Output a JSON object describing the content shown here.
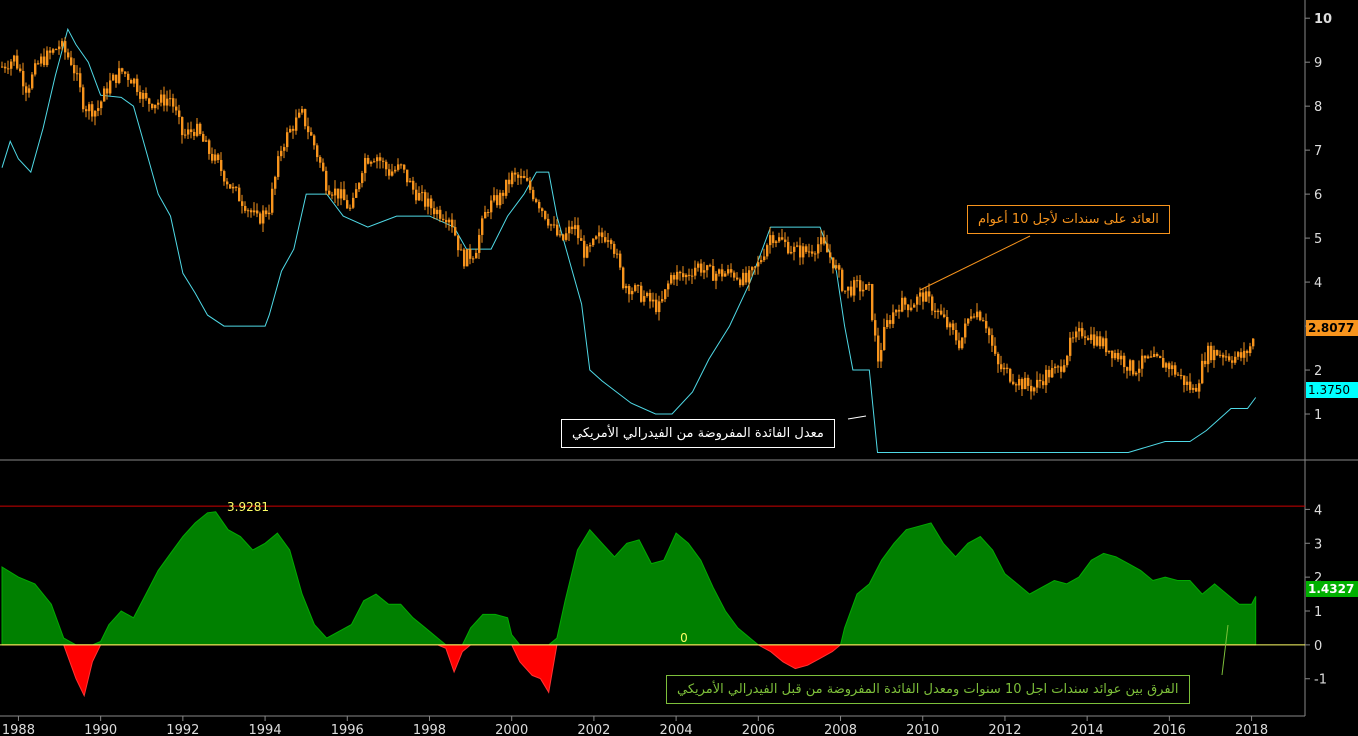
{
  "annotations": {
    "yield_label": "العائد على سندات لأجل 10 أعوام",
    "fed_label": "معدل الفائدة المفروضة من الفيدرالي الأمريكي",
    "spread_label": "الفرق بين عوائد سندات اجل 10 سنوات ومعدل الفائدة المفروضة من قبل الفيدرالي الأمريكي"
  },
  "last_values": {
    "yield": "2.8077",
    "fed": "1.3750",
    "spread": "1.4327",
    "spread_max": "3.9281",
    "zero": "0"
  },
  "colors": {
    "background": "#000000",
    "yield": "#f7941d",
    "fed": "#4fd9e6",
    "spread_pos": "#008000",
    "spread_neg": "#ff0000",
    "zero_line": "#ffff66",
    "max_line": "#cc0000",
    "axis_text": "#dddddd"
  },
  "chart_data": [
    {
      "type": "line",
      "panel": "top",
      "x_ticks": [
        "1988",
        "1990",
        "1992",
        "1994",
        "1996",
        "1998",
        "2000",
        "2002",
        "2004",
        "2006",
        "2008",
        "2010",
        "2012",
        "2014",
        "2016",
        "2018"
      ],
      "xlim": [
        1987.6,
        2019.3
      ],
      "y_ticks": [
        1,
        2,
        3,
        4,
        5,
        6,
        7,
        8,
        9,
        10
      ],
      "ylim": [
        0.0,
        10.3
      ],
      "series": [
        {
          "key": "yield",
          "x": [
            1987.6,
            1987.9,
            1988.2,
            1988.5,
            1988.8,
            1989.0,
            1989.3,
            1989.6,
            1989.9,
            1990.2,
            1990.5,
            1990.8,
            1991.1,
            1991.4,
            1991.7,
            1992.0,
            1992.3,
            1992.6,
            1992.9,
            1993.2,
            1993.5,
            1993.8,
            1994.1,
            1994.4,
            1994.7,
            1994.9,
            1995.2,
            1995.5,
            1995.8,
            1996.1,
            1996.4,
            1996.7,
            1997.0,
            1997.3,
            1997.6,
            1997.9,
            1998.2,
            1998.5,
            1998.8,
            1999.1,
            1999.4,
            1999.7,
            2000.0,
            2000.3,
            2000.6,
            2000.9,
            2001.2,
            2001.5,
            2001.8,
            2002.1,
            2002.4,
            2002.7,
            2003.0,
            2003.3,
            2003.6,
            2003.9,
            2004.2,
            2004.5,
            2004.8,
            2005.1,
            2005.4,
            2005.7,
            2006.0,
            2006.3,
            2006.6,
            2006.9,
            2007.2,
            2007.5,
            2007.8,
            2008.1,
            2008.4,
            2008.7,
            2008.9,
            2009.1,
            2009.4,
            2009.7,
            2010.0,
            2010.3,
            2010.6,
            2010.9,
            2011.2,
            2011.5,
            2011.8,
            2012.1,
            2012.4,
            2012.7,
            2013.0,
            2013.3,
            2013.6,
            2013.9,
            2014.2,
            2014.5,
            2014.8,
            2015.1,
            2015.4,
            2015.7,
            2016.0,
            2016.3,
            2016.6,
            2016.9,
            2017.2,
            2017.5,
            2017.8,
            2018.0,
            2018.1
          ],
          "values": [
            8.9,
            9.1,
            8.4,
            9.0,
            9.2,
            9.4,
            9.0,
            8.0,
            7.9,
            8.5,
            8.8,
            8.6,
            8.1,
            8.1,
            8.2,
            7.3,
            7.5,
            7.0,
            6.6,
            6.1,
            5.8,
            5.4,
            5.7,
            7.1,
            7.6,
            7.8,
            7.1,
            6.2,
            6.0,
            5.6,
            6.8,
            6.9,
            6.5,
            6.6,
            6.1,
            5.8,
            5.6,
            5.5,
            4.5,
            4.7,
            5.7,
            5.9,
            6.4,
            6.3,
            5.9,
            5.4,
            4.9,
            5.3,
            4.6,
            5.0,
            5.1,
            4.0,
            3.8,
            3.6,
            3.4,
            4.2,
            4.1,
            4.4,
            4.2,
            4.2,
            4.2,
            4.0,
            4.4,
            5.1,
            4.9,
            4.7,
            4.7,
            4.9,
            4.5,
            3.8,
            3.9,
            3.8,
            2.2,
            3.0,
            3.5,
            3.5,
            3.7,
            3.4,
            3.0,
            2.6,
            3.4,
            3.2,
            2.1,
            1.9,
            1.7,
            1.6,
            1.9,
            2.0,
            2.6,
            2.9,
            2.7,
            2.5,
            2.3,
            2.0,
            2.2,
            2.2,
            2.1,
            1.8,
            1.5,
            2.4,
            2.4,
            2.3,
            2.3,
            2.6,
            2.8077
          ]
        },
        {
          "key": "fed",
          "x": [
            1987.6,
            1987.8,
            1988.0,
            1988.3,
            1988.6,
            1988.9,
            1989.2,
            1989.4,
            1989.7,
            1990.0,
            1990.5,
            1990.8,
            1991.1,
            1991.4,
            1991.7,
            1992.0,
            1992.3,
            1992.6,
            1993.0,
            1993.5,
            1994.0,
            1994.1,
            1994.4,
            1994.7,
            1995.0,
            1995.5,
            1995.9,
            1996.5,
            1997.2,
            1998.0,
            1998.6,
            1998.9,
            1999.5,
            1999.9,
            2000.3,
            2000.6,
            2000.9,
            2001.1,
            2001.4,
            2001.7,
            2001.9,
            2002.2,
            2002.9,
            2003.5,
            2003.9,
            2004.4,
            2004.8,
            2005.3,
            2005.8,
            2006.3,
            2006.6,
            2007.5,
            2007.7,
            2007.9,
            2008.1,
            2008.3,
            2008.7,
            2008.9,
            2009.5,
            2012.0,
            2015.0,
            2015.9,
            2016.5,
            2016.9,
            2017.2,
            2017.5,
            2017.9,
            2018.1
          ],
          "values": [
            6.6,
            7.2,
            6.8,
            6.5,
            7.5,
            8.7,
            9.75,
            9.4,
            9.0,
            8.25,
            8.2,
            8.0,
            7.0,
            6.0,
            5.5,
            4.2,
            3.75,
            3.25,
            3.0,
            3.0,
            3.0,
            3.25,
            4.25,
            4.75,
            6.0,
            6.0,
            5.5,
            5.25,
            5.5,
            5.5,
            5.25,
            4.75,
            4.75,
            5.5,
            6.0,
            6.5,
            6.5,
            5.5,
            4.5,
            3.5,
            2.0,
            1.75,
            1.25,
            1.0,
            1.0,
            1.5,
            2.25,
            3.0,
            4.0,
            5.25,
            5.25,
            5.25,
            4.75,
            4.25,
            3.0,
            2.0,
            2.0,
            0.125,
            0.125,
            0.125,
            0.125,
            0.375,
            0.375,
            0.625,
            0.875,
            1.125,
            1.125,
            1.375
          ]
        }
      ]
    },
    {
      "type": "area",
      "panel": "bottom",
      "x_ticks": [
        "1988",
        "1990",
        "1992",
        "1994",
        "1996",
        "1998",
        "2000",
        "2002",
        "2004",
        "2006",
        "2008",
        "2010",
        "2012",
        "2014",
        "2016",
        "2018"
      ],
      "xlim": [
        1987.6,
        2019.3
      ],
      "y_ticks": [
        -1,
        0,
        1,
        2,
        3,
        4
      ],
      "ylim": [
        -2.1,
        4.75
      ],
      "max_value": 3.9281,
      "series": [
        {
          "key": "spread",
          "x": [
            1987.6,
            1988.0,
            1988.4,
            1988.8,
            1989.1,
            1989.4,
            1989.6,
            1989.8,
            1990.0,
            1990.2,
            1990.5,
            1990.8,
            1991.1,
            1991.4,
            1991.7,
            1992.0,
            1992.3,
            1992.6,
            1992.8,
            1993.1,
            1993.4,
            1993.7,
            1994.0,
            1994.3,
            1994.6,
            1994.9,
            1995.2,
            1995.5,
            1995.8,
            1996.1,
            1996.4,
            1996.7,
            1997.0,
            1997.3,
            1997.6,
            1997.9,
            1998.2,
            1998.4,
            1998.6,
            1998.8,
            1999.0,
            1999.3,
            1999.6,
            1999.9,
            2000.0,
            2000.2,
            2000.5,
            2000.7,
            2000.9,
            2001.1,
            2001.3,
            2001.6,
            2001.9,
            2002.2,
            2002.5,
            2002.8,
            2003.1,
            2003.4,
            2003.7,
            2004.0,
            2004.3,
            2004.6,
            2004.9,
            2005.2,
            2005.5,
            2005.8,
            2006.0,
            2006.3,
            2006.6,
            2006.9,
            2007.2,
            2007.5,
            2007.8,
            2008.0,
            2008.1,
            2008.4,
            2008.7,
            2009.0,
            2009.3,
            2009.6,
            2009.9,
            2010.2,
            2010.5,
            2010.8,
            2011.1,
            2011.4,
            2011.7,
            2012.0,
            2012.3,
            2012.6,
            2012.9,
            2013.2,
            2013.5,
            2013.8,
            2014.1,
            2014.4,
            2014.7,
            2015.0,
            2015.3,
            2015.6,
            2015.9,
            2016.2,
            2016.5,
            2016.8,
            2017.1,
            2017.4,
            2017.7,
            2018.0,
            2018.1
          ],
          "values": [
            2.3,
            2.0,
            1.8,
            1.2,
            0.2,
            -1.0,
            -1.5,
            -0.5,
            0.1,
            0.6,
            1.0,
            0.8,
            1.5,
            2.2,
            2.7,
            3.2,
            3.6,
            3.9,
            3.9281,
            3.4,
            3.2,
            2.8,
            3.0,
            3.3,
            2.8,
            1.5,
            0.6,
            0.2,
            0.4,
            0.6,
            1.3,
            1.5,
            1.2,
            1.2,
            0.8,
            0.5,
            0.2,
            -0.1,
            -0.8,
            -0.2,
            0.5,
            0.9,
            0.9,
            0.8,
            0.3,
            -0.5,
            -0.9,
            -1.0,
            -1.4,
            0.2,
            1.3,
            2.8,
            3.4,
            3.0,
            2.6,
            3.0,
            3.1,
            2.4,
            2.5,
            3.3,
            3.0,
            2.5,
            1.7,
            1.0,
            0.5,
            0.2,
            0.0,
            -0.2,
            -0.5,
            -0.7,
            -0.6,
            -0.4,
            -0.2,
            0.0,
            0.5,
            1.5,
            1.8,
            2.5,
            3.0,
            3.4,
            3.5,
            3.6,
            3.0,
            2.6,
            3.0,
            3.2,
            2.8,
            2.1,
            1.8,
            1.5,
            1.7,
            1.9,
            1.8,
            2.0,
            2.5,
            2.7,
            2.6,
            2.4,
            2.2,
            1.9,
            2.0,
            1.9,
            1.9,
            1.5,
            1.8,
            1.5,
            1.2,
            1.2,
            1.4327
          ]
        }
      ]
    }
  ]
}
